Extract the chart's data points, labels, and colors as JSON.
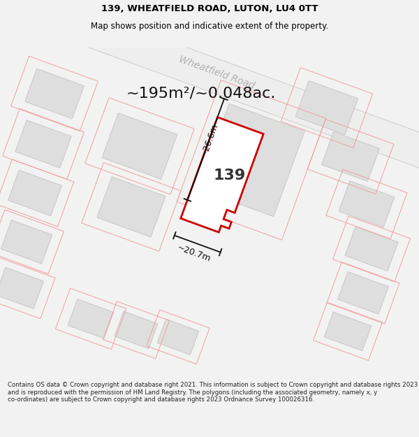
{
  "title": "139, WHEATFIELD ROAD, LUTON, LU4 0TT",
  "subtitle": "Map shows position and indicative extent of the property.",
  "area_text": "~195m²/~0.048ac.",
  "label_139": "139",
  "dim_width": "~20.7m",
  "dim_height": "~26.6m",
  "road_label": "Wheatfield Road",
  "footer": "Contains OS data © Crown copyright and database right 2021. This information is subject to Crown copyright and database rights 2023 and is reproduced with the permission of HM Land Registry. The polygons (including the associated geometry, namely x, y co-ordinates) are subject to Crown copyright and database rights 2023 Ordnance Survey 100026316.",
  "bg_color": "#f2f2f2",
  "map_bg": "#ffffff",
  "property_fill": "#ffffff",
  "property_edge": "#cc0000",
  "neighbor_fill": "#dedede",
  "neighbor_edge": "#c8c8c8",
  "pink_outline_color": "#f0a0a0",
  "dim_line_color": "#111111",
  "title_fontsize": 9.5,
  "subtitle_fontsize": 8.5,
  "area_fontsize": 16,
  "label_fontsize": 16,
  "dim_fontsize": 9,
  "road_fontsize": 10,
  "footer_fontsize": 6.2
}
